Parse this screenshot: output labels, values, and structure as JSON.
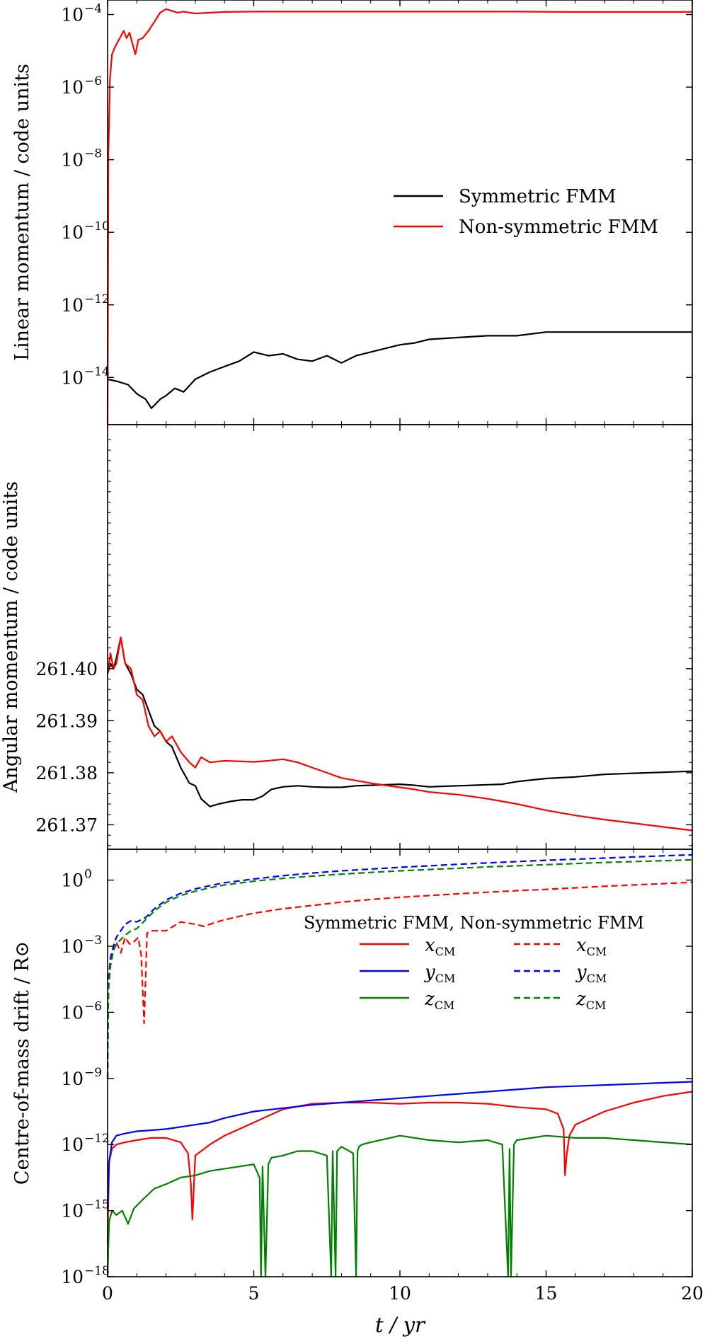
{
  "chart_data": [
    {
      "type": "line",
      "name": "linear-momentum",
      "ylabel": "Linear momentum / code units",
      "yscale": "log",
      "ylog_range": [
        -15.3,
        -3.6
      ],
      "yticks": [
        {
          "base": "10",
          "exp": "−14",
          "v": -14
        },
        {
          "base": "10",
          "exp": "−12",
          "v": -12
        },
        {
          "base": "10",
          "exp": "−10",
          "v": -10
        },
        {
          "base": "10",
          "exp": "−8",
          "v": -8
        },
        {
          "base": "10",
          "exp": "−6",
          "v": -6
        },
        {
          "base": "10",
          "exp": "−4",
          "v": -4
        }
      ],
      "legend": {
        "position": "right-center",
        "header": "",
        "entries": [
          "Symmetric FMM",
          "Non-symmetric FMM"
        ]
      },
      "series": [
        {
          "name": "Symmetric FMM",
          "color": "#000000",
          "dash": false,
          "x": [
            0,
            0.3,
            0.7,
            1.0,
            1.3,
            1.5,
            1.8,
            2.0,
            2.3,
            2.6,
            3.0,
            3.5,
            4.0,
            4.5,
            5.0,
            5.5,
            6.0,
            6.5,
            7.0,
            7.5,
            8.0,
            8.5,
            9.0,
            9.5,
            10.0,
            10.5,
            11.0,
            12.0,
            13.0,
            14.0,
            15.0,
            16.0,
            17.0,
            18.0,
            19.0,
            20.0
          ],
          "y": [
            -14.05,
            -14.1,
            -14.2,
            -14.45,
            -14.6,
            -14.85,
            -14.6,
            -14.5,
            -14.3,
            -14.4,
            -14.05,
            -13.85,
            -13.7,
            -13.55,
            -13.3,
            -13.4,
            -13.35,
            -13.5,
            -13.55,
            -13.4,
            -13.6,
            -13.4,
            -13.3,
            -13.2,
            -13.1,
            -13.05,
            -12.95,
            -12.9,
            -12.85,
            -12.85,
            -12.75,
            -12.75,
            -12.75,
            -12.75,
            -12.75,
            -12.75
          ]
        },
        {
          "name": "Non-symmetric FMM",
          "color": "#ff0000",
          "dash": false,
          "x": [
            0,
            0.03,
            0.08,
            0.15,
            0.25,
            0.35,
            0.45,
            0.55,
            0.65,
            0.75,
            0.85,
            0.95,
            1.05,
            1.2,
            1.4,
            1.6,
            1.8,
            2.0,
            2.2,
            2.4,
            2.6,
            2.8,
            3.0,
            4.0,
            5.0,
            6.0,
            8.0,
            10.0,
            12.0,
            14.0,
            16.0,
            18.0,
            20.0
          ],
          "y": [
            -15.3,
            -7.8,
            -5.8,
            -5.1,
            -4.9,
            -4.75,
            -4.6,
            -4.45,
            -4.65,
            -4.5,
            -4.8,
            -5.1,
            -4.7,
            -4.65,
            -4.45,
            -4.2,
            -3.95,
            -3.85,
            -3.9,
            -3.95,
            -3.92,
            -3.95,
            -3.97,
            -3.93,
            -3.92,
            -3.92,
            -3.92,
            -3.92,
            -3.92,
            -3.92,
            -3.93,
            -3.93,
            -3.93
          ]
        }
      ]
    },
    {
      "type": "line",
      "name": "angular-momentum",
      "ylabel": "Angular momentum / code units",
      "yscale": "linear",
      "ylim": [
        261.3653,
        261.4469
      ],
      "yticks": [
        {
          "label": "261.37",
          "v": 261.37
        },
        {
          "label": "261.38",
          "v": 261.38
        },
        {
          "label": "261.39",
          "v": 261.39
        },
        {
          "label": "261.40",
          "v": 261.4
        }
      ],
      "series": [
        {
          "name": "Symmetric FMM",
          "color": "#000000",
          "dash": false,
          "x": [
            0,
            0.1,
            0.2,
            0.3,
            0.45,
            0.6,
            0.8,
            1.0,
            1.2,
            1.4,
            1.6,
            1.8,
            2.0,
            2.2,
            2.5,
            2.8,
            3.0,
            3.2,
            3.5,
            3.8,
            4.2,
            4.6,
            5.0,
            5.3,
            5.6,
            6.0,
            6.5,
            7.0,
            7.5,
            8.0,
            8.5,
            9.0,
            9.5,
            10.0,
            10.5,
            11.0,
            11.5,
            12.0,
            12.5,
            13.0,
            13.5,
            14.0,
            15.0,
            16.0,
            17.0,
            18.0,
            19.0,
            20.0
          ],
          "y": [
            261.399,
            261.401,
            261.4,
            261.402,
            261.406,
            261.401,
            261.399,
            261.396,
            261.395,
            261.392,
            261.389,
            261.388,
            261.386,
            261.385,
            261.381,
            261.378,
            261.3775,
            261.375,
            261.3735,
            261.374,
            261.3745,
            261.3748,
            261.3748,
            261.3755,
            261.3768,
            261.3773,
            261.3775,
            261.3773,
            261.3772,
            261.3772,
            261.3775,
            261.3776,
            261.3777,
            261.3778,
            261.3776,
            261.3773,
            261.3774,
            261.3775,
            261.3776,
            261.3777,
            261.3778,
            261.3783,
            261.3789,
            261.3792,
            261.3797,
            261.3799,
            261.3801,
            261.3803
          ]
        },
        {
          "name": "Non-symmetric FMM",
          "color": "#ff0000",
          "dash": false,
          "x": [
            0,
            0.1,
            0.2,
            0.3,
            0.45,
            0.6,
            0.8,
            1.0,
            1.2,
            1.4,
            1.6,
            1.8,
            2.0,
            2.2,
            2.5,
            2.8,
            3.0,
            3.2,
            3.5,
            4.0,
            4.5,
            5.0,
            5.5,
            6.0,
            6.5,
            7.0,
            7.5,
            8.0,
            8.5,
            9.0,
            9.5,
            10.0,
            10.5,
            11.0,
            12.0,
            13.0,
            14.0,
            15.0,
            16.0,
            17.0,
            18.0,
            19.0,
            20.0
          ],
          "y": [
            261.399,
            261.403,
            261.4,
            261.401,
            261.406,
            261.401,
            261.4,
            261.395,
            261.394,
            261.389,
            261.387,
            261.388,
            261.386,
            261.387,
            261.384,
            261.382,
            261.381,
            261.383,
            261.382,
            261.3823,
            261.3822,
            261.3821,
            261.3823,
            261.3826,
            261.382,
            261.381,
            261.38,
            261.379,
            261.3785,
            261.378,
            261.3776,
            261.3772,
            261.3768,
            261.3763,
            261.3758,
            261.375,
            261.374,
            261.3728,
            261.3718,
            261.371,
            261.3703,
            261.3696,
            261.3689
          ]
        }
      ]
    },
    {
      "type": "line",
      "name": "centre-of-mass-drift",
      "ylabel": "Centre-of-mass drift / R⊙",
      "yscale": "log",
      "ylog_range": [
        -18,
        1.4
      ],
      "yticks": [
        {
          "base": "10",
          "exp": "−18",
          "v": -18
        },
        {
          "base": "10",
          "exp": "−15",
          "v": -15
        },
        {
          "base": "10",
          "exp": "−12",
          "v": -12
        },
        {
          "base": "10",
          "exp": "−9",
          "v": -9
        },
        {
          "base": "10",
          "exp": "−6",
          "v": -6
        },
        {
          "base": "10",
          "exp": "−3",
          "v": -3
        },
        {
          "base": "10",
          "exp": "0",
          "v": 0
        }
      ],
      "xlabel": "t / yr",
      "xlim": [
        0,
        20
      ],
      "xticks": [
        0,
        5,
        10,
        15,
        20
      ],
      "legend": {
        "position": "right-center",
        "header": "Symmetric FMM, Non-symmetric FMM",
        "entries": [
          "x",
          "y",
          "z"
        ],
        "subscript": "CM"
      },
      "series": [
        {
          "name": "x CM (symmetric)",
          "color": "#ff0000",
          "dash": false,
          "x": [
            0,
            0.05,
            0.15,
            0.3,
            0.6,
            1.0,
            1.5,
            2.0,
            2.5,
            2.75,
            2.85,
            2.9,
            3.0,
            3.5,
            4.0,
            5.0,
            6.0,
            7.0,
            8.0,
            9.0,
            10.0,
            11.0,
            12.0,
            13.0,
            14.0,
            15.0,
            15.4,
            15.6,
            15.65,
            15.7,
            15.8,
            16.0,
            17.0,
            18.0,
            19.0,
            20.0
          ],
          "y": [
            -16.5,
            -12.8,
            -12.2,
            -12.0,
            -11.9,
            -11.8,
            -11.7,
            -11.7,
            -11.9,
            -12.4,
            -13.8,
            -15.4,
            -12.5,
            -12.0,
            -11.6,
            -11.0,
            -10.4,
            -10.15,
            -10.1,
            -10.1,
            -10.15,
            -10.1,
            -10.1,
            -10.15,
            -10.3,
            -10.4,
            -10.6,
            -11.3,
            -13.4,
            -12.5,
            -11.6,
            -11.1,
            -10.5,
            -10.1,
            -9.8,
            -9.6
          ]
        },
        {
          "name": "y CM (symmetric)",
          "color": "#0000ff",
          "dash": false,
          "x": [
            0,
            0.05,
            0.15,
            0.3,
            0.6,
            1.0,
            1.5,
            2.0,
            2.5,
            3.0,
            3.5,
            4.0,
            5.0,
            6.0,
            7.0,
            8.0,
            9.0,
            10.0,
            11.0,
            12.0,
            13.0,
            14.0,
            15.0,
            16.0,
            17.0,
            18.0,
            19.0,
            20.0
          ],
          "y": [
            -15.0,
            -12.8,
            -11.9,
            -11.6,
            -11.5,
            -11.4,
            -11.35,
            -11.3,
            -11.2,
            -11.1,
            -11.0,
            -10.8,
            -10.5,
            -10.35,
            -10.2,
            -10.1,
            -10.0,
            -9.9,
            -9.8,
            -9.7,
            -9.6,
            -9.5,
            -9.4,
            -9.35,
            -9.3,
            -9.25,
            -9.2,
            -9.15
          ]
        },
        {
          "name": "z CM (symmetric)",
          "color": "#008000",
          "dash": false,
          "x": [
            0,
            0.05,
            0.15,
            0.3,
            0.5,
            0.7,
            0.9,
            1.2,
            1.6,
            2.0,
            2.5,
            3.0,
            3.5,
            4.0,
            4.5,
            5.0,
            5.2,
            5.25,
            5.3,
            5.4,
            5.5,
            5.6,
            6.0,
            6.5,
            7.0,
            7.5,
            7.65,
            7.7,
            7.8,
            7.85,
            8.0,
            8.4,
            8.5,
            8.55,
            8.6,
            8.7,
            9.0,
            10.0,
            11.0,
            12.0,
            13.0,
            13.5,
            13.7,
            13.75,
            13.8,
            13.9,
            14.0,
            15.0,
            16.0,
            17.0,
            18.0,
            19.0,
            20.0
          ],
          "y": [
            -18.0,
            -15.5,
            -15.0,
            -15.2,
            -15.0,
            -15.6,
            -14.9,
            -14.5,
            -14.0,
            -13.8,
            -13.5,
            -13.4,
            -13.2,
            -13.1,
            -13.0,
            -12.9,
            -13.5,
            -18.0,
            -13.0,
            -18.0,
            -12.9,
            -12.6,
            -12.5,
            -12.3,
            -12.3,
            -12.5,
            -18.0,
            -12.3,
            -18.0,
            -12.3,
            -12.1,
            -12.4,
            -18.0,
            -12.3,
            -12.1,
            -12.0,
            -11.9,
            -11.6,
            -11.8,
            -11.9,
            -11.8,
            -12.0,
            -18.0,
            -12.2,
            -18.0,
            -12.0,
            -11.8,
            -11.6,
            -11.7,
            -11.7,
            -11.8,
            -11.9,
            -12.0
          ]
        },
        {
          "name": "x CM (non-symmetric)",
          "color": "#ff0000",
          "dash": true,
          "x": [
            0,
            0.03,
            0.1,
            0.2,
            0.3,
            0.45,
            0.6,
            0.75,
            0.9,
            1.05,
            1.15,
            1.25,
            1.35,
            1.5,
            2.0,
            2.5,
            3.0,
            3.3,
            3.5,
            4.0,
            5.0,
            6.0,
            7.0,
            8.0,
            9.0,
            10.0,
            11.0,
            12.0,
            13.0,
            14.0,
            15.0,
            16.0,
            17.0,
            18.0,
            19.0,
            20.0
          ],
          "y": [
            -9.0,
            -4.5,
            -3.5,
            -3.0,
            -2.8,
            -3.3,
            -2.6,
            -2.9,
            -2.8,
            -2.6,
            -3.4,
            -6.5,
            -2.4,
            -2.3,
            -2.3,
            -1.9,
            -2.0,
            -2.1,
            -2.0,
            -1.8,
            -1.5,
            -1.3,
            -1.15,
            -1.0,
            -0.88,
            -0.78,
            -0.7,
            -0.62,
            -0.55,
            -0.48,
            -0.42,
            -0.35,
            -0.28,
            -0.22,
            -0.16,
            -0.1
          ]
        },
        {
          "name": "y CM (non-symmetric)",
          "color": "#0000ff",
          "dash": true,
          "x": [
            0,
            0.03,
            0.1,
            0.2,
            0.3,
            0.45,
            0.6,
            0.8,
            1.0,
            1.3,
            1.6,
            2.0,
            2.5,
            3.0,
            3.5,
            4.0,
            5.0,
            6.0,
            7.0,
            8.0,
            9.0,
            10.0,
            11.0,
            12.0,
            13.0,
            14.0,
            15.0,
            16.0,
            17.0,
            18.0,
            19.0,
            20.0
          ],
          "y": [
            -9.0,
            -4.8,
            -3.6,
            -3.0,
            -2.6,
            -2.3,
            -2.0,
            -1.85,
            -1.9,
            -1.7,
            -1.3,
            -0.9,
            -0.6,
            -0.4,
            -0.25,
            -0.12,
            0.05,
            0.2,
            0.32,
            0.42,
            0.5,
            0.58,
            0.65,
            0.72,
            0.78,
            0.84,
            0.9,
            0.95,
            1.0,
            1.05,
            1.1,
            1.15
          ]
        },
        {
          "name": "z CM (non-symmetric)",
          "color": "#008000",
          "dash": true,
          "x": [
            0,
            0.03,
            0.1,
            0.2,
            0.3,
            0.45,
            0.6,
            0.8,
            1.0,
            1.3,
            1.6,
            2.0,
            2.5,
            3.0,
            3.5,
            4.0,
            5.0,
            6.0,
            7.0,
            8.0,
            9.0,
            10.0,
            11.0,
            12.0,
            13.0,
            14.0,
            15.0,
            16.0,
            17.0,
            18.0,
            19.0,
            20.0
          ],
          "y": [
            -9.0,
            -5.0,
            -3.9,
            -3.2,
            -2.9,
            -2.7,
            -2.5,
            -2.3,
            -2.2,
            -1.8,
            -1.4,
            -1.0,
            -0.7,
            -0.5,
            -0.35,
            -0.22,
            -0.05,
            0.08,
            0.18,
            0.27,
            0.35,
            0.42,
            0.48,
            0.54,
            0.6,
            0.65,
            0.7,
            0.75,
            0.8,
            0.84,
            0.88,
            0.92
          ]
        }
      ]
    }
  ]
}
